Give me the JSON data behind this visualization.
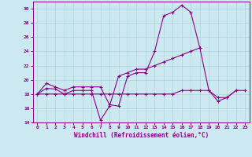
{
  "xlabel": "Windchill (Refroidissement éolien,°C)",
  "background_color": "#cce8f0",
  "grid_color": "#b0d4d4",
  "line_color": "#880088",
  "xlim": [
    -0.5,
    23.5
  ],
  "ylim": [
    14,
    31
  ],
  "yticks": [
    14,
    16,
    18,
    20,
    22,
    24,
    26,
    28,
    30
  ],
  "xticks": [
    0,
    1,
    2,
    3,
    4,
    5,
    6,
    7,
    8,
    9,
    10,
    11,
    12,
    13,
    14,
    15,
    16,
    17,
    18,
    19,
    20,
    21,
    22,
    23
  ],
  "hours": [
    0,
    1,
    2,
    3,
    4,
    5,
    6,
    7,
    8,
    9,
    10,
    11,
    12,
    13,
    14,
    15,
    16,
    17,
    18,
    19,
    20,
    21,
    22,
    23
  ],
  "series1": [
    18.0,
    19.5,
    19.0,
    18.5,
    19.0,
    19.0,
    19.0,
    19.0,
    16.5,
    16.3,
    20.5,
    21.0,
    21.0,
    24.0,
    29.0,
    29.5,
    30.5,
    29.5,
    24.5,
    null,
    null,
    null,
    null,
    null
  ],
  "series2": [
    18.0,
    18.8,
    18.7,
    18.0,
    18.5,
    18.5,
    18.5,
    14.3,
    16.3,
    20.5,
    21.0,
    21.5,
    21.5,
    22.0,
    22.5,
    23.0,
    23.5,
    24.0,
    24.5,
    18.5,
    17.0,
    17.5,
    18.5,
    null
  ],
  "series3": [
    18.0,
    18.0,
    18.0,
    18.0,
    18.0,
    18.0,
    18.0,
    18.0,
    18.0,
    18.0,
    18.0,
    18.0,
    18.0,
    18.0,
    18.0,
    18.0,
    18.5,
    18.5,
    18.5,
    18.5,
    17.5,
    17.5,
    18.5,
    18.5
  ]
}
